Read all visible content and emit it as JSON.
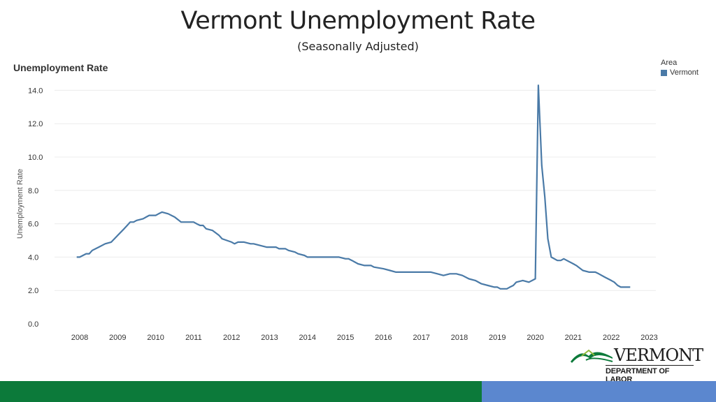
{
  "slide": {
    "title": "Vermont Unemployment Rate",
    "subtitle": "(Seasonally Adjusted)"
  },
  "chart_data": {
    "type": "line",
    "title": "Unemployment Rate",
    "xlabel": "",
    "ylabel": "Unemployment Rate",
    "xlim": [
      2008,
      2023
    ],
    "ylim": [
      0,
      14.5
    ],
    "yticks": [
      "0.0",
      "2.0",
      "4.0",
      "6.0",
      "8.0",
      "10.0",
      "12.0",
      "14.0"
    ],
    "xticks": [
      "2008",
      "2009",
      "2010",
      "2011",
      "2012",
      "2013",
      "2014",
      "2015",
      "2016",
      "2017",
      "2018",
      "2019",
      "2020",
      "2021",
      "2022",
      "2023"
    ],
    "grid": true,
    "legend_title": "Area",
    "legend_position": "top-right",
    "series": [
      {
        "name": "Vermont",
        "color": "#4a7aa7",
        "x": [
          2007.92,
          2008.0,
          2008.17,
          2008.25,
          2008.33,
          2008.5,
          2008.67,
          2008.83,
          2009.0,
          2009.17,
          2009.25,
          2009.33,
          2009.42,
          2009.5,
          2009.67,
          2009.75,
          2009.83,
          2010.0,
          2010.08,
          2010.17,
          2010.33,
          2010.5,
          2010.67,
          2010.83,
          2011.0,
          2011.08,
          2011.17,
          2011.25,
          2011.33,
          2011.5,
          2011.67,
          2011.75,
          2012.0,
          2012.08,
          2012.17,
          2012.33,
          2012.5,
          2012.58,
          2012.75,
          2012.92,
          2013.0,
          2013.17,
          2013.25,
          2013.42,
          2013.5,
          2013.67,
          2013.75,
          2013.92,
          2014.0,
          2014.17,
          2014.33,
          2014.5,
          2014.67,
          2014.83,
          2015.0,
          2015.08,
          2015.17,
          2015.25,
          2015.33,
          2015.5,
          2015.67,
          2015.75,
          2016.0,
          2016.17,
          2016.33,
          2016.5,
          2016.75,
          2017.0,
          2017.25,
          2017.42,
          2017.58,
          2017.75,
          2017.92,
          2018.08,
          2018.25,
          2018.42,
          2018.58,
          2018.75,
          2018.92,
          2019.0,
          2019.08,
          2019.25,
          2019.33,
          2019.42,
          2019.5,
          2019.67,
          2019.83,
          2020.0,
          2020.08,
          2020.17,
          2020.25,
          2020.33,
          2020.42,
          2020.58,
          2020.67,
          2020.75,
          2020.83,
          2021.0,
          2021.08,
          2021.25,
          2021.42,
          2021.5,
          2021.58,
          2021.67,
          2021.83,
          2022.0,
          2022.08,
          2022.17,
          2022.25,
          2022.33,
          2022.42,
          2022.5
        ],
        "y": [
          4.0,
          4.0,
          4.2,
          4.2,
          4.4,
          4.6,
          4.8,
          4.9,
          5.3,
          5.7,
          5.9,
          6.1,
          6.1,
          6.2,
          6.3,
          6.4,
          6.5,
          6.5,
          6.6,
          6.7,
          6.6,
          6.4,
          6.1,
          6.1,
          6.1,
          6.0,
          5.9,
          5.9,
          5.7,
          5.6,
          5.3,
          5.1,
          4.9,
          4.8,
          4.9,
          4.9,
          4.8,
          4.8,
          4.7,
          4.6,
          4.6,
          4.6,
          4.5,
          4.5,
          4.4,
          4.3,
          4.2,
          4.1,
          4.0,
          4.0,
          4.0,
          4.0,
          4.0,
          4.0,
          3.9,
          3.9,
          3.8,
          3.7,
          3.6,
          3.5,
          3.5,
          3.4,
          3.3,
          3.2,
          3.1,
          3.1,
          3.1,
          3.1,
          3.1,
          3.0,
          2.9,
          3.0,
          3.0,
          2.9,
          2.7,
          2.6,
          2.4,
          2.3,
          2.2,
          2.2,
          2.1,
          2.1,
          2.2,
          2.3,
          2.5,
          2.6,
          2.5,
          2.7,
          14.3,
          9.5,
          7.6,
          5.1,
          4.0,
          3.8,
          3.8,
          3.9,
          3.8,
          3.6,
          3.5,
          3.2,
          3.1,
          3.1,
          3.1,
          3.0,
          2.8,
          2.6,
          2.5,
          2.3,
          2.2,
          2.2,
          2.2,
          2.2
        ]
      }
    ]
  },
  "logo": {
    "wordmark": "VERMONT",
    "department": "DEPARTMENT OF LABOR"
  },
  "colors": {
    "footer_green": "#0c7a3a",
    "footer_blue": "#5b87cf",
    "line": "#4a7aa7"
  }
}
